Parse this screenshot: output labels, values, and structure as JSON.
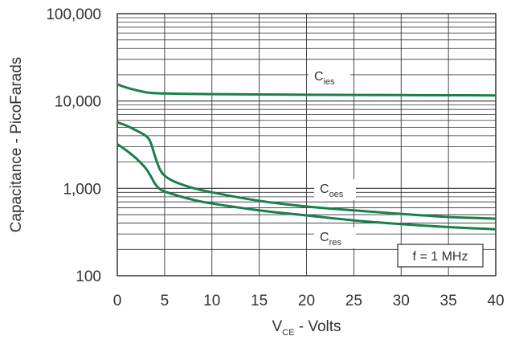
{
  "chart_data": {
    "type": "line",
    "xlabel": {
      "main": "V",
      "sub": "CE",
      "rest": " - Volts"
    },
    "ylabel": "Capacitance - PicoFarads",
    "xlim": [
      0,
      40
    ],
    "ylim": [
      100,
      100000
    ],
    "yscale": "log",
    "grid": true,
    "x_ticks": [
      "0",
      "5",
      "10",
      "15",
      "20",
      "25",
      "30",
      "35",
      "40"
    ],
    "y_ticks": [
      "100",
      "1,000",
      "10,000",
      "100,000"
    ],
    "annotation": "f = 1 MHz",
    "series": [
      {
        "name": "ies",
        "label_main": "C",
        "label_sub": "ies",
        "color": "#1a7f4b",
        "x": [
          0,
          1,
          2,
          3,
          4,
          5,
          7,
          10,
          15,
          20,
          25,
          30,
          35,
          40
        ],
        "y": [
          15500,
          14200,
          13300,
          12600,
          12300,
          12200,
          12100,
          12000,
          11900,
          11800,
          11750,
          11700,
          11650,
          11600
        ]
      },
      {
        "name": "oes",
        "label_main": "C",
        "label_sub": "oes",
        "color": "#1a7f4b",
        "x": [
          0,
          1,
          2,
          3,
          3.5,
          4,
          4.5,
          5,
          6,
          8,
          10,
          15,
          20,
          25,
          30,
          35,
          40
        ],
        "y": [
          5700,
          5200,
          4600,
          4000,
          3400,
          2300,
          1650,
          1400,
          1200,
          1010,
          900,
          720,
          620,
          560,
          510,
          470,
          450
        ]
      },
      {
        "name": "res",
        "label_main": "C",
        "label_sub": "res",
        "color": "#1a7f4b",
        "x": [
          0,
          1,
          2,
          3,
          3.5,
          4,
          4.5,
          5,
          6,
          8,
          10,
          15,
          20,
          25,
          30,
          35,
          40
        ],
        "y": [
          3200,
          2700,
          2200,
          1700,
          1400,
          1120,
          980,
          920,
          850,
          740,
          670,
          560,
          490,
          430,
          390,
          360,
          340
        ]
      }
    ]
  }
}
